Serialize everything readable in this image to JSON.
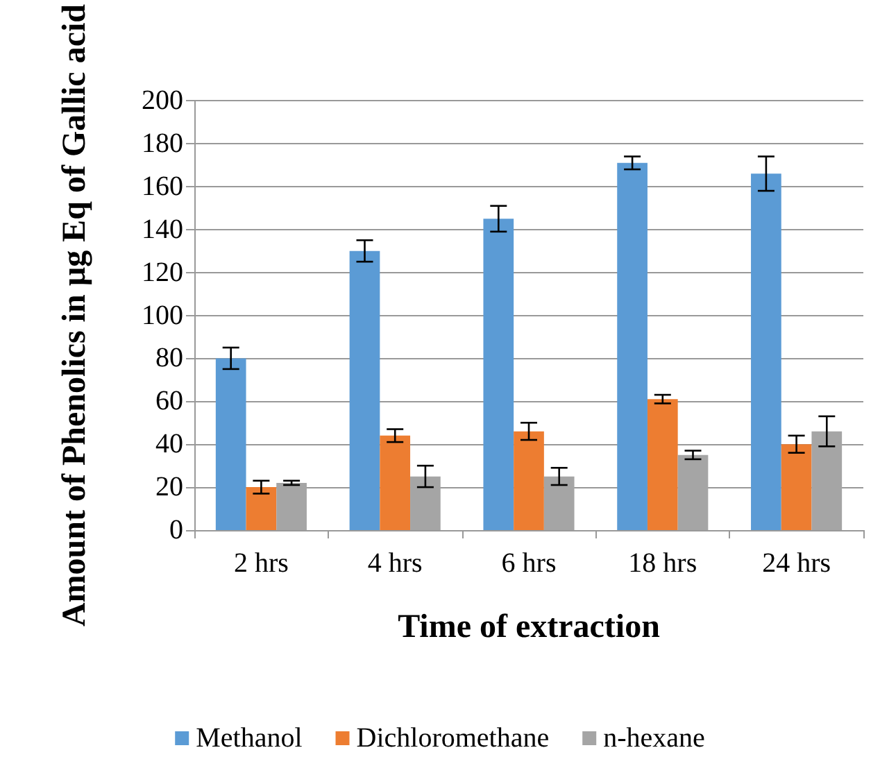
{
  "chart_data": {
    "type": "bar",
    "xlabel": "Time of extraction",
    "ylabel": "Amount of Phenolics in µg Eq of Gallic acid",
    "categories": [
      "2 hrs",
      "4 hrs",
      "6 hrs",
      "18 hrs",
      "24 hrs"
    ],
    "series": [
      {
        "name": "Methanol",
        "color": "#5b9bd5",
        "values": [
          80,
          130,
          145,
          171,
          166
        ],
        "errors": [
          5,
          5,
          6,
          3,
          8
        ]
      },
      {
        "name": "Dichloromethane",
        "color": "#ed7d31",
        "values": [
          20,
          44,
          46,
          61,
          40
        ],
        "errors": [
          3,
          3,
          4,
          2,
          4
        ]
      },
      {
        "name": "n-hexane",
        "color": "#a5a5a5",
        "values": [
          22,
          25,
          25,
          35,
          46
        ],
        "errors": [
          1,
          5,
          4,
          2,
          7
        ]
      }
    ],
    "ylim": [
      0,
      200
    ],
    "yticks": [
      0,
      20,
      40,
      60,
      80,
      100,
      120,
      140,
      160,
      180,
      200
    ],
    "grid": "y",
    "legend": "bottom"
  }
}
